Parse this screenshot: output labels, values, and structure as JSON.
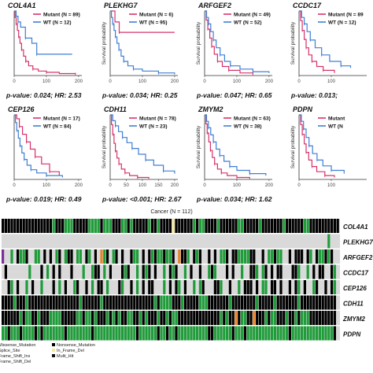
{
  "colors": {
    "mutant": "#d6336c",
    "wt": "#3f7fd4",
    "background_cell": "#d9d9d9",
    "missense": "#1f9d3a",
    "nonsense": "#000000",
    "splice": "#7a2f99",
    "frame_shift_ins": "#e8842a",
    "frame_shift_del": "#3a78c9",
    "in_frame_del": "#f3e9a0",
    "multi_hit": "#111111"
  },
  "survival_panels": [
    {
      "gene": "COL4A1",
      "mutant_label": "Mutant (N = 89)",
      "wt_label": "WT (N = 12)",
      "ylabel": "",
      "stats": "p-value: 0.024; HR: 2.53"
    },
    {
      "gene": "PLEKHG7",
      "mutant_label": "Mutant (N = 6)",
      "wt_label": "WT (N = 95)",
      "ylabel": "Survival probability",
      "stats": "p-value: 0.034; HR: 0.25"
    },
    {
      "gene": "ARFGEF2",
      "mutant_label": "Mutant (N = 49)",
      "wt_label": "WT (N = 52)",
      "ylabel": "Survival probability",
      "stats": "p-value: 0.047; HR: 0.65"
    },
    {
      "gene": "CCDC17",
      "mutant_label": "Mutant (N = 89",
      "wt_label": "WT (N = 12)",
      "ylabel": "Survival probability",
      "stats": "p-value: 0.013;"
    },
    {
      "gene": "CEP126",
      "mutant_label": "Mutant (N = 17)",
      "wt_label": "WT (N = 84)",
      "ylabel": "",
      "stats": "p-value: 0.019; HR: 0.49"
    },
    {
      "gene": "CDH11",
      "mutant_label": "Mutant (N = 78)",
      "wt_label": "WT (N = 23)",
      "ylabel": "Survival probability",
      "stats": "p-value: <0.001; HR: 2.67"
    },
    {
      "gene": "ZMYM2",
      "mutant_label": "Mutant (N = 63)",
      "wt_label": "WT (N = 38)",
      "ylabel": "Survival probability",
      "stats": "p-value: 0.034; HR: 1.62"
    },
    {
      "gene": "PDPN",
      "mutant_label": "Mutant",
      "wt_label": "WT (N",
      "ylabel": "Survival probability",
      "stats": ""
    }
  ],
  "chart_data": [
    {
      "type": "line",
      "title": "COL4A1",
      "ylabel": "",
      "x_ticks": [
        "0",
        "100",
        "200"
      ],
      "xlim": [
        0,
        210
      ],
      "ylim": [
        0,
        1
      ],
      "series": [
        {
          "name": "Mutant (N = 89)",
          "points": [
            [
              0,
              1
            ],
            [
              3,
              0.9
            ],
            [
              6,
              0.8
            ],
            [
              10,
              0.7
            ],
            [
              14,
              0.6
            ],
            [
              18,
              0.5
            ],
            [
              23,
              0.4
            ],
            [
              29,
              0.3
            ],
            [
              36,
              0.22
            ],
            [
              45,
              0.15
            ],
            [
              58,
              0.1
            ],
            [
              75,
              0.07
            ],
            [
              100,
              0.05
            ],
            [
              140,
              0.03
            ],
            [
              190,
              0.02
            ]
          ]
        },
        {
          "name": "WT (N = 12)",
          "points": [
            [
              0,
              1
            ],
            [
              6,
              0.92
            ],
            [
              12,
              0.83
            ],
            [
              20,
              0.75
            ],
            [
              35,
              0.58
            ],
            [
              55,
              0.5
            ],
            [
              70,
              0.33
            ],
            [
              180,
              0.33
            ]
          ]
        }
      ],
      "stats": "p-value: 0.024; HR: 2.53"
    },
    {
      "type": "line",
      "title": "PLEKHG7",
      "ylabel": "Survival probability",
      "x_ticks": [
        "0",
        "100",
        "200"
      ],
      "xlim": [
        0,
        210
      ],
      "ylim": [
        0,
        1
      ],
      "series": [
        {
          "name": "Mutant (N = 6)",
          "points": [
            [
              0,
              1
            ],
            [
              15,
              0.83
            ],
            [
              28,
              0.67
            ],
            [
              200,
              0.67
            ]
          ]
        },
        {
          "name": "WT (N = 95)",
          "points": [
            [
              0,
              1
            ],
            [
              4,
              0.9
            ],
            [
              8,
              0.8
            ],
            [
              12,
              0.7
            ],
            [
              16,
              0.6
            ],
            [
              21,
              0.5
            ],
            [
              27,
              0.4
            ],
            [
              34,
              0.3
            ],
            [
              42,
              0.22
            ],
            [
              55,
              0.15
            ],
            [
              72,
              0.1
            ],
            [
              100,
              0.07
            ],
            [
              150,
              0.04
            ],
            [
              200,
              0.02
            ]
          ]
        }
      ],
      "stats": "p-value: 0.034; HR: 0.25"
    },
    {
      "type": "line",
      "title": "ARFGEF2",
      "ylabel": "Survival probability",
      "x_ticks": [
        "0",
        "100",
        "200"
      ],
      "xlim": [
        0,
        210
      ],
      "ylim": [
        0,
        1
      ],
      "series": [
        {
          "name": "Mutant (N = 49)",
          "points": [
            [
              0,
              1
            ],
            [
              5,
              0.86
            ],
            [
              10,
              0.72
            ],
            [
              16,
              0.58
            ],
            [
              22,
              0.45
            ],
            [
              30,
              0.33
            ],
            [
              40,
              0.22
            ],
            [
              55,
              0.14
            ],
            [
              75,
              0.08
            ],
            [
              110,
              0.04
            ],
            [
              150,
              0.02
            ]
          ]
        },
        {
          "name": "WT (N = 52)",
          "points": [
            [
              0,
              1
            ],
            [
              6,
              0.9
            ],
            [
              12,
              0.8
            ],
            [
              19,
              0.68
            ],
            [
              27,
              0.55
            ],
            [
              36,
              0.43
            ],
            [
              48,
              0.32
            ],
            [
              62,
              0.22
            ],
            [
              80,
              0.15
            ],
            [
              110,
              0.1
            ],
            [
              150,
              0.06
            ],
            [
              200,
              0.04
            ]
          ]
        }
      ],
      "stats": "p-value: 0.047; HR: 0.65"
    },
    {
      "type": "line",
      "title": "CCDC17",
      "ylabel": "Survival probability",
      "x_ticks": [
        "0",
        "100"
      ],
      "xlim": [
        0,
        210
      ],
      "ylim": [
        0,
        1
      ],
      "series": [
        {
          "name": "Mutant (N = 89",
          "points": [
            [
              0,
              1
            ],
            [
              5,
              0.85
            ],
            [
              10,
              0.7
            ],
            [
              16,
              0.56
            ],
            [
              22,
              0.43
            ],
            [
              30,
              0.32
            ],
            [
              40,
              0.22
            ],
            [
              55,
              0.14
            ],
            [
              75,
              0.08
            ],
            [
              110,
              0.04
            ]
          ]
        },
        {
          "name": "WT (N = 12)",
          "points": [
            [
              0,
              1
            ],
            [
              8,
              0.9
            ],
            [
              16,
              0.8
            ],
            [
              25,
              0.68
            ],
            [
              35,
              0.55
            ],
            [
              50,
              0.43
            ],
            [
              70,
              0.32
            ],
            [
              95,
              0.22
            ],
            [
              130,
              0.15
            ],
            [
              160,
              0.12
            ]
          ]
        }
      ],
      "stats": "p-value: 0.013;"
    },
    {
      "type": "line",
      "title": "CEP126",
      "ylabel": "",
      "x_ticks": [
        "0",
        "100",
        "200"
      ],
      "xlim": [
        0,
        210
      ],
      "ylim": [
        0,
        1
      ],
      "series": [
        {
          "name": "Mutant (N = 17)",
          "points": [
            [
              0,
              1
            ],
            [
              8,
              0.94
            ],
            [
              16,
              0.82
            ],
            [
              26,
              0.7
            ],
            [
              38,
              0.58
            ],
            [
              50,
              0.47
            ],
            [
              65,
              0.35
            ],
            [
              85,
              0.24
            ],
            [
              110,
              0.12
            ],
            [
              140,
              0.06
            ]
          ]
        },
        {
          "name": "WT (N = 84)",
          "points": [
            [
              0,
              1
            ],
            [
              4,
              0.88
            ],
            [
              8,
              0.76
            ],
            [
              13,
              0.64
            ],
            [
              18,
              0.52
            ],
            [
              24,
              0.41
            ],
            [
              31,
              0.31
            ],
            [
              40,
              0.22
            ],
            [
              52,
              0.15
            ],
            [
              70,
              0.1
            ],
            [
              100,
              0.06
            ],
            [
              150,
              0.03
            ]
          ]
        }
      ],
      "stats": "p-value: 0.019; HR: 0.49"
    },
    {
      "type": "line",
      "title": "CDH11",
      "ylabel": "Survival probability",
      "x_ticks": [
        "0",
        "50",
        "100",
        "150",
        "200"
      ],
      "xlim": [
        0,
        210
      ],
      "ylim": [
        0,
        1
      ],
      "series": [
        {
          "name": "Mutant (N = 78)",
          "points": [
            [
              0,
              1
            ],
            [
              4,
              0.85
            ],
            [
              8,
              0.7
            ],
            [
              12,
              0.56
            ],
            [
              16,
              0.44
            ],
            [
              21,
              0.33
            ],
            [
              27,
              0.24
            ],
            [
              35,
              0.16
            ],
            [
              46,
              0.1
            ],
            [
              60,
              0.06
            ],
            [
              85,
              0.03
            ],
            [
              120,
              0.01
            ]
          ]
        },
        {
          "name": "WT (N = 23)",
          "points": [
            [
              0,
              1
            ],
            [
              8,
              0.91
            ],
            [
              16,
              0.83
            ],
            [
              26,
              0.74
            ],
            [
              38,
              0.65
            ],
            [
              52,
              0.57
            ],
            [
              68,
              0.48
            ],
            [
              88,
              0.39
            ],
            [
              110,
              0.3
            ],
            [
              135,
              0.22
            ],
            [
              165,
              0.13
            ],
            [
              200,
              0.09
            ]
          ]
        }
      ],
      "stats": "p-value: <0.001; HR: 2.67"
    },
    {
      "type": "line",
      "title": "ZMYM2",
      "ylabel": "Survival probability",
      "x_ticks": [
        "0",
        "100",
        "200"
      ],
      "xlim": [
        0,
        210
      ],
      "ylim": [
        0,
        1
      ],
      "series": [
        {
          "name": "Mutant (N = 63)",
          "points": [
            [
              0,
              1
            ],
            [
              4,
              0.86
            ],
            [
              8,
              0.72
            ],
            [
              13,
              0.58
            ],
            [
              18,
              0.45
            ],
            [
              24,
              0.34
            ],
            [
              31,
              0.24
            ],
            [
              40,
              0.16
            ],
            [
              52,
              0.1
            ],
            [
              70,
              0.06
            ],
            [
              100,
              0.03
            ],
            [
              140,
              0.01
            ]
          ]
        },
        {
          "name": "WT (N = 38)",
          "points": [
            [
              0,
              1
            ],
            [
              6,
              0.9
            ],
            [
              12,
              0.8
            ],
            [
              19,
              0.69
            ],
            [
              27,
              0.58
            ],
            [
              36,
              0.47
            ],
            [
              47,
              0.37
            ],
            [
              60,
              0.28
            ],
            [
              78,
              0.2
            ],
            [
              100,
              0.14
            ],
            [
              140,
              0.09
            ],
            [
              190,
              0.06
            ]
          ]
        }
      ],
      "stats": "p-value: 0.034; HR: 1.62"
    },
    {
      "type": "line",
      "title": "PDPN",
      "ylabel": "Survival probability",
      "x_ticks": [
        "0",
        "100"
      ],
      "xlim": [
        0,
        210
      ],
      "ylim": [
        0,
        1
      ],
      "series": [
        {
          "name": "Mutant",
          "points": [
            [
              0,
              1
            ],
            [
              5,
              0.85
            ],
            [
              10,
              0.7
            ],
            [
              16,
              0.55
            ],
            [
              22,
              0.42
            ],
            [
              30,
              0.3
            ],
            [
              40,
              0.2
            ],
            [
              55,
              0.12
            ],
            [
              80,
              0.06
            ],
            [
              110,
              0.03
            ]
          ]
        },
        {
          "name": "WT (N",
          "points": [
            [
              0,
              1
            ],
            [
              7,
              0.9
            ],
            [
              14,
              0.78
            ],
            [
              22,
              0.65
            ],
            [
              31,
              0.52
            ],
            [
              42,
              0.4
            ],
            [
              56,
              0.3
            ],
            [
              74,
              0.21
            ],
            [
              100,
              0.14
            ],
            [
              140,
              0.09
            ]
          ]
        }
      ],
      "stats": ""
    }
  ],
  "oncoprint": {
    "title": "Cancer (N = 112)",
    "genes": [
      "COL4A1",
      "PLEKHG7",
      "ARFGEF2",
      "CCDC17",
      "CEP126",
      "CDH11",
      "ZMYM2",
      "PDPN"
    ],
    "legend": [
      "Missense_Mutation",
      "Nonsense_Mutation",
      "Splice_Site",
      "In_Frame_Del",
      "Frame_Shift_Ins",
      "Multi_Hit",
      "Frame_Shift_Del"
    ],
    "legend_colors": [
      "#1f9d3a",
      "#000000",
      "#7a2f99",
      "#f3e9a0",
      "#e8842a",
      "#111111",
      "#3a78c9"
    ],
    "rows": [
      "NNNNNNNNNNNNNNNNNMNNNMMMNNNNNMMMMNMMMNNNMMNMNNNNNMNNMNNNNINNNNNNMNMMNNNNMNNNNNNMMNNNNNMNNNNNNNMNNNNNNMMNNNNNNNNNN",
      "-------------------------------------------------------------------------------------------------------------M",
      "S--M-NMMN--MM-N-N-MN-MNN-MM-NM-N-FMN-MN-N--NMM-N-NMNMMNMMN-FNNM-NMN--N-N-MMN-NNMMMMNN--N-MMNMM--N-NNN-NM-NMMNMN",
      "-N-------M---N-M-N-N---N---M--MNN-M-N---NMN--M-NMN-N--M-NMN--M-N--N--MNM---N-N--M--NNM-MN-N-NN---NNM--M-N-NN--NM",
      "--NM-N--M-N--M---N-M-N--MN--N-M-NN-M---NM--N-M-N-NN---M-N-NM-N--M-MN---NNM--N--M-NNN-N-MM-NN-N--N-NM-N--MN--N-NM",
      "NNNNMNNNMNNNNNNNNNNNNNNNNNMNNNNNNMNNNNNNNNNNNNNNNNNMNMMMMNNNMNNNNNMMMNNNNNNNMNNNNNNNNMNNNNNMNNNNNNNMNNNNNNNNNNNN",
      "NNNNNNMNMMNNMNNNMMMMNNNNNMMNMMNMNNNMNMNMNNMMNNMNMNNNMNNMNMMNNNNNNNNNNNNNNMNMNNFNMMNNFNNNMNMMNNNMNNMNMMMNNNNNNNNN",
      "MMNMMMNMMMMNMNMMMMMMMNMMMMMMMMNMMMMMMMMMMMMMMNMMMMMMNMMNMMNMMMMMMMMMMNNMMMMMMNMMMNMMMMMMMMMMMMMMNMMMMMMMMMMMMMMN"
    ]
  }
}
